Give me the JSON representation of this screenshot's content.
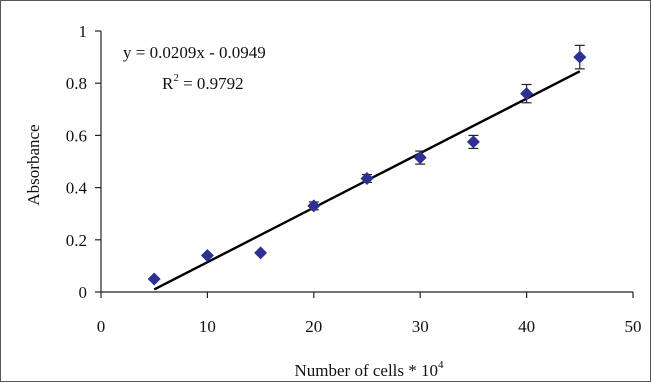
{
  "chart_data": {
    "type": "scatter",
    "title": "",
    "xlabel": "Number of cells * 10",
    "xlabel_sup": "4",
    "ylabel": "Absorbance",
    "xlim": [
      0,
      50
    ],
    "ylim": [
      0,
      1
    ],
    "x_ticks": [
      0,
      10,
      20,
      30,
      40,
      50
    ],
    "y_ticks": [
      0,
      0.2,
      0.4,
      0.6,
      0.8,
      1
    ],
    "x_tick_labels": [
      "0",
      "10",
      "20",
      "30",
      "40",
      "50"
    ],
    "y_tick_labels": [
      "0",
      "0.2",
      "0.4",
      "0.6",
      "0.8",
      "1"
    ],
    "grid": false,
    "legend": "none",
    "marker": "diamond",
    "marker_color": "#2E3192",
    "series": [
      {
        "x": [
          5,
          10,
          15,
          20,
          25,
          30,
          35,
          40,
          45
        ],
        "y": [
          0.05,
          0.14,
          0.15,
          0.33,
          0.435,
          0.515,
          0.575,
          0.76,
          0.9
        ],
        "error": [
          0.0,
          0.0,
          0.0,
          0.015,
          0.015,
          0.025,
          0.025,
          0.035,
          0.045
        ]
      }
    ],
    "trendline": {
      "type": "linear",
      "slope": 0.0209,
      "intercept": -0.0949,
      "x_range": [
        5,
        45
      ]
    },
    "annotations": {
      "equation": "y = 0.0209x - 0.0949",
      "r2_prefix": "R",
      "r2_sup": "2",
      "r2_value": " = 0.9792"
    }
  }
}
